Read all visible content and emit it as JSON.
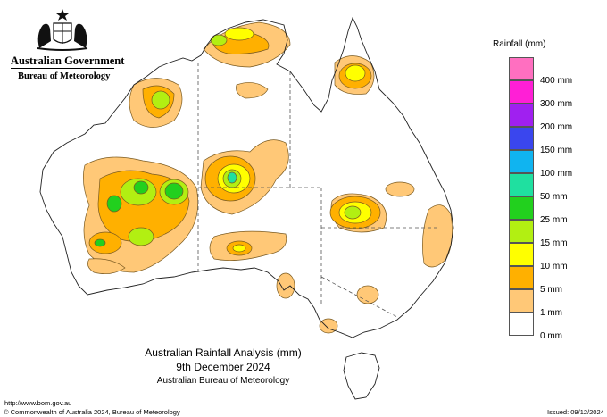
{
  "header": {
    "government": "Australian Government",
    "bureau": "Bureau of Meteorology",
    "crest_icon": "commonwealth-coat-of-arms"
  },
  "legend": {
    "title": "Rainfall (mm)",
    "classes": [
      {
        "label": "400 mm",
        "color": "#ff6fc0"
      },
      {
        "label": "300 mm",
        "color": "#ff1fd6"
      },
      {
        "label": "200 mm",
        "color": "#a020f0"
      },
      {
        "label": "150 mm",
        "color": "#3a46ee"
      },
      {
        "label": "100 mm",
        "color": "#10b4f0"
      },
      {
        "label": "50 mm",
        "color": "#1fe0a0"
      },
      {
        "label": "25 mm",
        "color": "#22d01e"
      },
      {
        "label": "15 mm",
        "color": "#b2ef12"
      },
      {
        "label": "10 mm",
        "color": "#ffff00"
      },
      {
        "label": "5 mm",
        "color": "#ffb000"
      },
      {
        "label": "1 mm",
        "color": "#ffc877"
      },
      {
        "label": "0 mm",
        "color": "#ffffff"
      }
    ]
  },
  "caption": {
    "title": "Australian Rainfall Analysis (mm)",
    "date": "9th December 2024",
    "org": "Australian Bureau of Meteorology"
  },
  "footer": {
    "url": "http://www.bom.gov.au",
    "copyright": "© Commonwealth of Australia 2024, Bureau of Meteorology",
    "issued": "Issued: 09/12/2024"
  }
}
